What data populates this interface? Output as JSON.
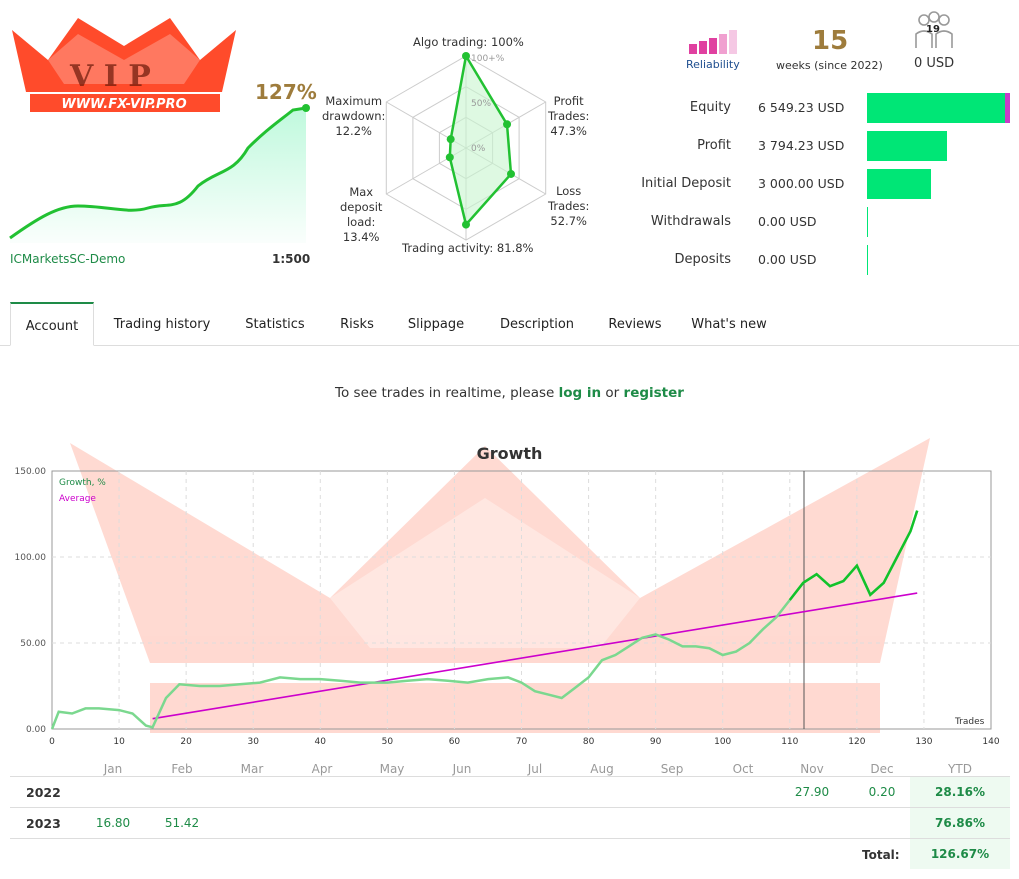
{
  "header": {
    "logo_text": "WWW.FX-VIP.PRO",
    "gain": "127%",
    "broker": "ICMarketsSC-Demo",
    "leverage": "1:500"
  },
  "radar": {
    "algo_trading": "Algo trading: 100%",
    "profit_trades": [
      "Profit",
      "Trades:",
      "47.3%"
    ],
    "loss_trades": [
      "Loss",
      "Trades:",
      "52.7%"
    ],
    "trading_activity": "Trading activity: 81.8%",
    "max_deposit_load": [
      "Max",
      "deposit",
      "load:",
      "13.4%"
    ],
    "max_drawdown": [
      "Maximum",
      "drawdown:",
      "12.2%"
    ],
    "scale_100": "100+%",
    "scale_50": "50%",
    "scale_0": "0%",
    "values": {
      "algo": 100,
      "profit": 47.3,
      "loss": 52.7,
      "activity": 81.8,
      "load": 13.4,
      "drawdown": 12.2
    }
  },
  "stats": {
    "reliability_label": "Reliability",
    "weeks": "15",
    "weeks_label": "weeks (since 2022)",
    "subscribers": "19",
    "subscribers_usd": "0 USD",
    "colors": {
      "reliability": "#e040a0",
      "bar": "#00e676",
      "accent": "#1e8b47"
    }
  },
  "finance": [
    {
      "label": "Equity",
      "value": "6 549.23 USD",
      "fill": 1.0
    },
    {
      "label": "Profit",
      "value": "3 794.23 USD",
      "fill": 0.55
    },
    {
      "label": "Initial Deposit",
      "value": "3 000.00 USD",
      "fill": 0.45
    },
    {
      "label": "Withdrawals",
      "value": "0.00 USD",
      "fill": 0
    },
    {
      "label": "Deposits",
      "value": "0.00 USD",
      "fill": 0
    }
  ],
  "tabs": [
    "Account",
    "Trading history",
    "Statistics",
    "Risks",
    "Slippage",
    "Description",
    "Reviews",
    "What's new"
  ],
  "realtime": {
    "prefix": "To see trades in realtime, please",
    "login": "log in",
    "or": "or",
    "register": "register"
  },
  "chart_data": {
    "type": "line",
    "title": "Growth",
    "xlabel": "Trades",
    "ylabel": "",
    "xlim": [
      0,
      140
    ],
    "ylim": [
      0,
      150
    ],
    "x_ticks": [
      0,
      10,
      20,
      30,
      40,
      50,
      60,
      70,
      80,
      90,
      100,
      110,
      120,
      130,
      140
    ],
    "y_ticks": [
      "0.00",
      "50.00",
      "100.00",
      "150.00"
    ],
    "legend": [
      "Growth, %",
      "Average"
    ],
    "series": [
      {
        "name": "Growth, %",
        "x": [
          0,
          1,
          3,
          5,
          7,
          10,
          12,
          14,
          15,
          17,
          19,
          22,
          25,
          28,
          31,
          34,
          37,
          40,
          43,
          46,
          50,
          53,
          56,
          59,
          62,
          65,
          68,
          70,
          72,
          74,
          76,
          78,
          80,
          82,
          84,
          86,
          88,
          90,
          92,
          94,
          96,
          98,
          100,
          102,
          104,
          106,
          108,
          110,
          112,
          114,
          116,
          118,
          120,
          122,
          124,
          126,
          128,
          129
        ],
        "y": [
          0,
          10,
          9,
          12,
          12,
          11,
          9,
          2,
          1,
          18,
          26,
          25,
          25,
          26,
          27,
          30,
          29,
          29,
          28,
          27,
          27,
          28,
          29,
          28,
          27,
          29,
          30,
          27,
          22,
          20,
          18,
          24,
          30,
          40,
          43,
          48,
          53,
          55,
          52,
          48,
          48,
          47,
          43,
          45,
          50,
          58,
          65,
          75,
          85,
          90,
          83,
          86,
          95,
          78,
          85,
          100,
          115,
          127
        ]
      },
      {
        "name": "Average",
        "x": [
          15,
          129
        ],
        "y": [
          6,
          79
        ]
      }
    ]
  },
  "monthly": {
    "months": [
      "Jan",
      "Feb",
      "Mar",
      "Apr",
      "May",
      "Jun",
      "Jul",
      "Aug",
      "Sep",
      "Oct",
      "Nov",
      "Dec"
    ],
    "ytd_label": "YTD",
    "rows": [
      {
        "year": "2022",
        "values": [
          "",
          "",
          "",
          "",
          "",
          "",
          "",
          "",
          "",
          "",
          "27.90",
          "0.20"
        ],
        "ytd": "28.16%"
      },
      {
        "year": "2023",
        "values": [
          "16.80",
          "51.42",
          "",
          "",
          "",
          "",
          "",
          "",
          "",
          "",
          "",
          ""
        ],
        "ytd": "76.86%"
      }
    ],
    "total_label": "Total:",
    "total_value": "126.67%"
  }
}
